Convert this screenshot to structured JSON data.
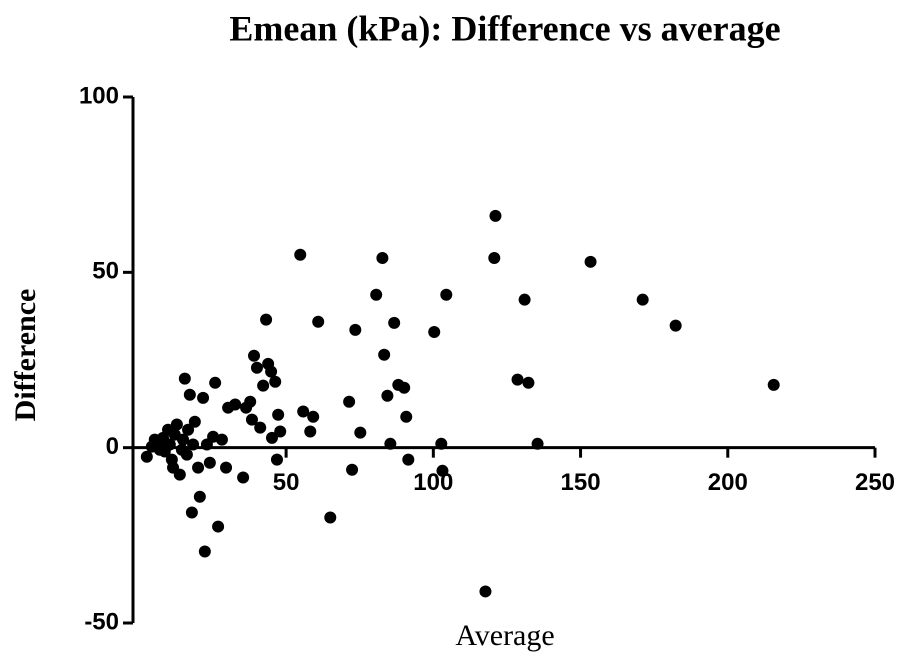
{
  "chart_data": {
    "type": "scatter",
    "title": "Emean (kPa): Difference vs average",
    "x_label": "Average",
    "y_label": "Difference",
    "xlim": [
      -2,
      250
    ],
    "xticks": [
      50,
      100,
      150,
      200,
      250
    ],
    "ylim": [
      -50,
      100
    ],
    "yticks": [
      -50,
      0,
      50,
      100
    ],
    "series": [
      {
        "color": "#000000",
        "x": [
          2.7,
          4.4,
          5.4,
          6.5,
          7.1,
          8.2,
          8.8,
          9.9,
          10.5,
          11.2,
          11.6,
          12.2,
          12.9,
          13.9,
          14.6,
          15.0,
          15.6,
          16.3,
          16.7,
          17.3,
          18.0,
          18.4,
          19.0,
          20.1,
          20.7,
          21.8,
          22.4,
          23.1,
          24.1,
          25.2,
          25.9,
          26.9,
          28.2,
          29.6,
          30.3,
          32.7,
          35.4,
          36.4,
          37.8,
          38.4,
          39.1,
          40.1,
          41.2,
          42.2,
          43.2,
          43.9,
          44.9,
          45.2,
          46.3,
          46.9,
          47.3,
          48.0,
          54.8,
          55.8,
          58.2,
          59.2,
          60.9,
          65.0,
          71.4,
          72.4,
          73.5,
          75.2,
          80.6,
          82.7,
          83.3,
          84.4,
          85.4,
          86.7,
          88.1,
          90.1,
          90.8,
          91.5,
          100.3,
          102.7,
          103.1,
          104.4,
          117.7,
          120.7,
          121.1,
          128.6,
          131.0,
          132.3,
          135.4,
          153.4,
          171.1,
          182.3,
          215.6
        ],
        "values": [
          -2.6,
          0.3,
          2.3,
          0.9,
          -0.6,
          2.8,
          -1.1,
          5.1,
          0.9,
          -3.4,
          -5.7,
          3.7,
          6.6,
          -7.7,
          -0.6,
          2.3,
          19.7,
          -2.0,
          5.1,
          15.1,
          -18.5,
          0.9,
          7.4,
          -5.7,
          -14.0,
          14.2,
          -29.6,
          0.9,
          -4.3,
          3.1,
          18.5,
          -22.5,
          2.3,
          -5.7,
          11.4,
          12.3,
          -8.5,
          11.4,
          13.1,
          8.0,
          26.2,
          22.8,
          5.7,
          17.7,
          36.5,
          23.9,
          21.7,
          2.8,
          18.8,
          -3.4,
          9.4,
          4.6,
          55.0,
          10.3,
          4.6,
          8.8,
          35.9,
          -19.9,
          13.1,
          -6.3,
          33.6,
          4.3,
          43.6,
          54.1,
          26.5,
          14.8,
          1.1,
          35.6,
          17.9,
          17.1,
          8.8,
          -3.4,
          33.0,
          1.1,
          -6.6,
          43.6,
          -41.0,
          54.1,
          66.1,
          19.4,
          42.2,
          18.5,
          1.1,
          53.0,
          42.2,
          34.8,
          17.9
        ]
      }
    ]
  }
}
